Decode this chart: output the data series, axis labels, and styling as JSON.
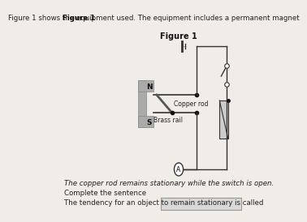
{
  "bg_color": "#f0ece8",
  "title_text": "Figure 1",
  "header_text": "Figure 1 shows the equipment used. The equipment includes a permanent magnet",
  "footer_text1": "The copper rod remains stationary while the switch is open.",
  "footer_text2": "Complete the sentence",
  "footer_text3": "The tendency for an object to remain stationary is called",
  "label_N": "N",
  "label_S": "S",
  "label_copper": "Copper rod",
  "label_brass": "Brass rail",
  "label_A": "A",
  "magnet_color": "#b0b0b0",
  "circuit_color": "#333333",
  "answer_box_color": "#d8d8d8"
}
